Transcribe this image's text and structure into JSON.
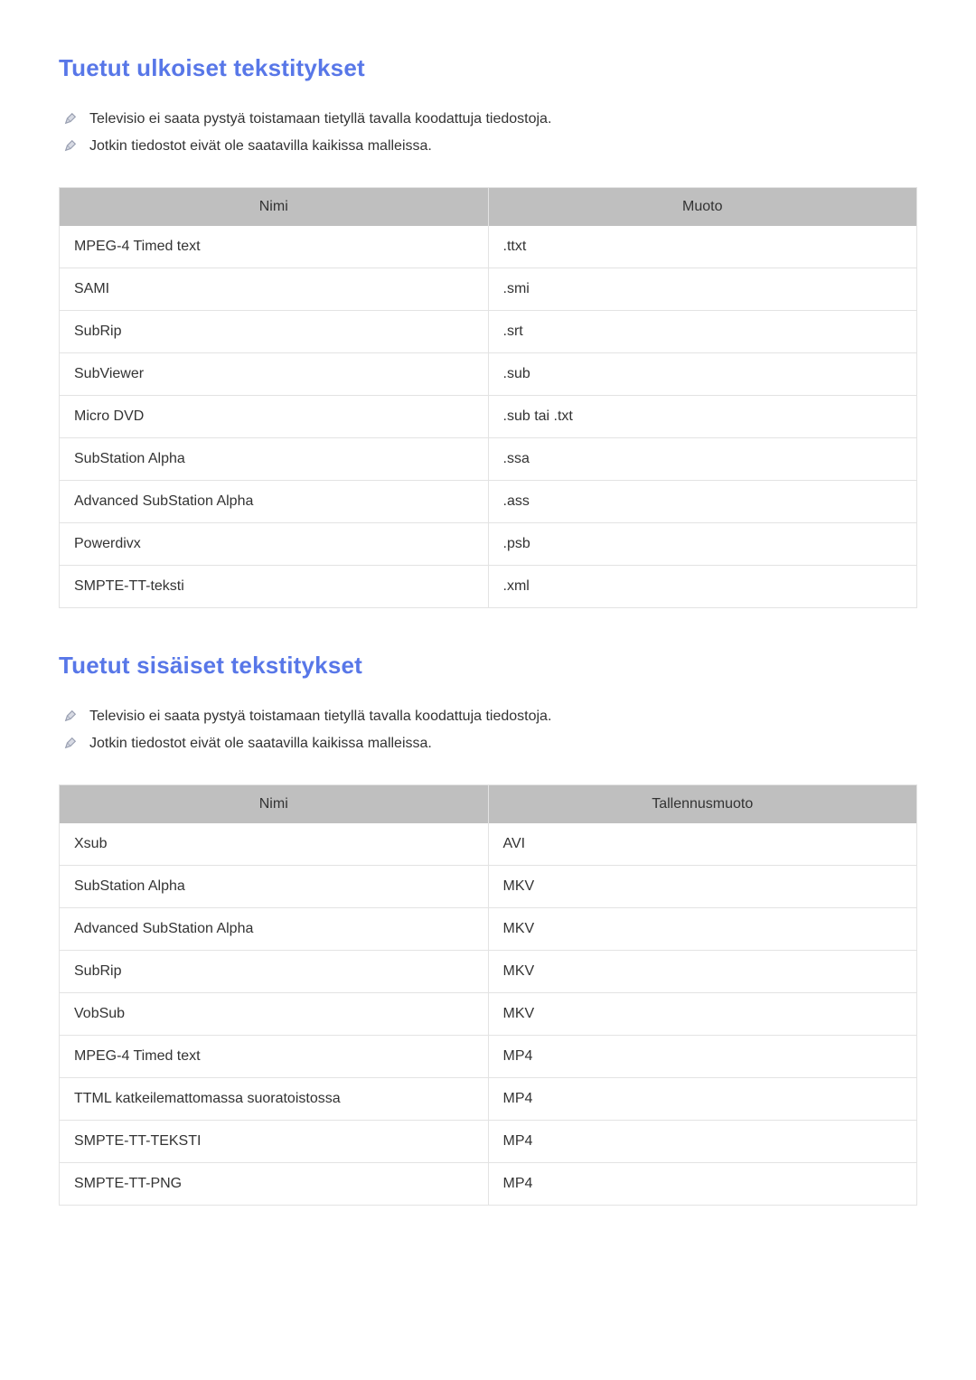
{
  "colors": {
    "heading": "#5877e8",
    "text": "#333333",
    "table_header_bg": "#bfbfbf",
    "table_border": "#e3e3e3",
    "background": "#ffffff",
    "icon_stroke": "#9aa0b2"
  },
  "typography": {
    "heading_fontsize": 26,
    "heading_weight": 700,
    "body_fontsize": 16,
    "table_header_fontsize": 16
  },
  "section1": {
    "title": "Tuetut ulkoiset tekstitykset",
    "notes": [
      "Televisio ei saata pystyä toistamaan tietyllä tavalla koodattuja tiedostoja.",
      "Jotkin tiedostot eivät ole saatavilla kaikissa malleissa."
    ],
    "table": {
      "columns": [
        "Nimi",
        "Muoto"
      ],
      "rows": [
        [
          "MPEG-4 Timed text",
          ".ttxt"
        ],
        [
          "SAMI",
          ".smi"
        ],
        [
          "SubRip",
          ".srt"
        ],
        [
          "SubViewer",
          ".sub"
        ],
        [
          "Micro DVD",
          ".sub tai .txt"
        ],
        [
          "SubStation Alpha",
          ".ssa"
        ],
        [
          "Advanced SubStation Alpha",
          ".ass"
        ],
        [
          "Powerdivx",
          ".psb"
        ],
        [
          "SMPTE-TT-teksti",
          ".xml"
        ]
      ]
    }
  },
  "section2": {
    "title": "Tuetut sisäiset tekstitykset",
    "notes": [
      "Televisio ei saata pystyä toistamaan tietyllä tavalla koodattuja tiedostoja.",
      "Jotkin tiedostot eivät ole saatavilla kaikissa malleissa."
    ],
    "table": {
      "columns": [
        "Nimi",
        "Tallennusmuoto"
      ],
      "rows": [
        [
          "Xsub",
          "AVI"
        ],
        [
          "SubStation Alpha",
          "MKV"
        ],
        [
          "Advanced SubStation Alpha",
          "MKV"
        ],
        [
          "SubRip",
          "MKV"
        ],
        [
          "VobSub",
          "MKV"
        ],
        [
          "MPEG-4 Timed text",
          "MP4"
        ],
        [
          "TTML katkeilemattomassa suoratoistossa",
          "MP4"
        ],
        [
          "SMPTE-TT-TEKSTI",
          "MP4"
        ],
        [
          "SMPTE-TT-PNG",
          "MP4"
        ]
      ]
    }
  }
}
